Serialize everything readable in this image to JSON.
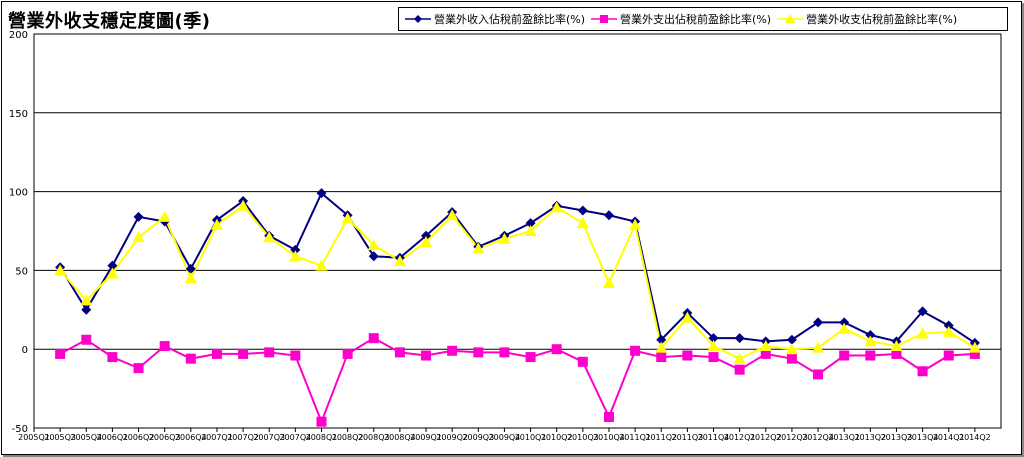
{
  "chart_data": {
    "type": "line",
    "title": "營業外收支穩定度圖(季)",
    "categories": [
      "2005Q1",
      "2005Q3",
      "2005Q4",
      "2006Q1",
      "2006Q2",
      "2006Q3",
      "2006Q4",
      "2007Q1",
      "2007Q2",
      "2007Q3",
      "2007Q4",
      "2008Q1",
      "2008Q2",
      "2008Q3",
      "2008Q4",
      "2009Q1",
      "2009Q2",
      "2009Q3",
      "2009Q4",
      "2010Q1",
      "2010Q2",
      "2010Q3",
      "2010Q4",
      "2011Q1",
      "2011Q2",
      "2011Q3",
      "2011Q4",
      "2012Q1",
      "2012Q2",
      "2012Q3",
      "2012Q4",
      "2013Q1",
      "2013Q2",
      "2013Q3",
      "2013Q4",
      "2014Q1",
      "2014Q2"
    ],
    "series": [
      {
        "name": "營業外收入佔稅前盈餘比率(%)",
        "color": "#000080",
        "marker": "diamond",
        "values": [
          null,
          52,
          25,
          53,
          84,
          81,
          51,
          82,
          94,
          72,
          63,
          99,
          85,
          59,
          58,
          72,
          87,
          65,
          72,
          80,
          91,
          88,
          85,
          81,
          6,
          23,
          7,
          7,
          5,
          6,
          17,
          17,
          9,
          5,
          24,
          15,
          4
        ]
      },
      {
        "name": "營業外支出佔稅前盈餘比率(%)",
        "color": "#ff00cc",
        "marker": "square",
        "values": [
          null,
          -3,
          6,
          -5,
          -12,
          2,
          -6,
          -3,
          -3,
          -2,
          -4,
          -46,
          -3,
          7,
          -2,
          -4,
          -1,
          -2,
          -2,
          -5,
          0,
          -8,
          -43,
          -1,
          -5,
          -4,
          -5,
          -13,
          -3,
          -6,
          -16,
          -4,
          -4,
          -3,
          -14,
          -4,
          -3
        ]
      },
      {
        "name": "營業外收支佔稅前盈餘比率(%)",
        "color": "#ffff00",
        "marker": "triangle",
        "values": [
          null,
          50,
          31,
          48,
          71,
          84,
          45,
          79,
          91,
          71,
          59,
          53,
          83,
          66,
          56,
          68,
          85,
          64,
          70,
          75,
          90,
          80,
          42,
          79,
          1,
          20,
          2,
          -6,
          2,
          0,
          1,
          13,
          5,
          2,
          10,
          11,
          1
        ]
      }
    ],
    "ylim": [
      -50,
      200
    ],
    "yticks": [
      -50,
      0,
      50,
      100,
      150,
      200
    ],
    "grid": true,
    "legend_position": "top-right"
  }
}
